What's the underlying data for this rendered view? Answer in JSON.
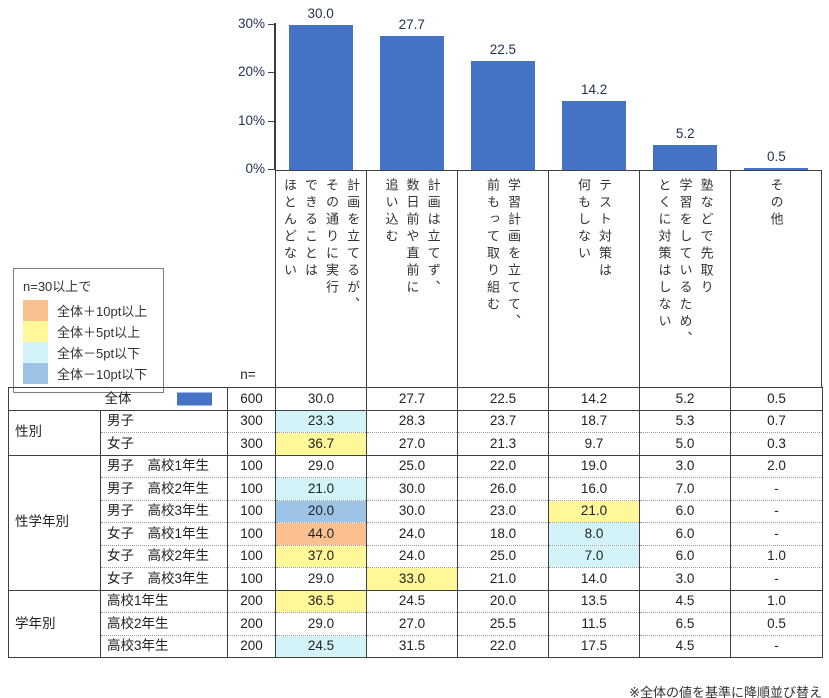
{
  "chart_data": {
    "type": "bar",
    "title": "",
    "xlabel": "",
    "ylabel": "",
    "ylim": [
      0,
      30
    ],
    "yticks": [
      30,
      20,
      10,
      0
    ],
    "ytick_suffix": "%",
    "grid": false,
    "legend_position": "none",
    "bar_color": "#4472C4",
    "categories": [
      "計画を立てるが、\nその通りに実行\nできることは\nほとんどない",
      "計画は立てず、\n数日前や直前に\n追い込む",
      "学習計画を立てて、\n前もって取り組む",
      "テスト対策は\n何もしない",
      "塾などで先取り\n学習をしているため、\nとくに対策はしない",
      "その他"
    ],
    "values": [
      30.0,
      27.7,
      22.5,
      14.2,
      5.2,
      0.5
    ],
    "value_labels": [
      "30.0",
      "27.7",
      "22.5",
      "14.2",
      "5.2",
      "0.5"
    ]
  },
  "legend": {
    "title": "n=30以上で",
    "items": [
      {
        "key": "plus10",
        "label": "全体＋10pt以上",
        "color": "#FAC090"
      },
      {
        "key": "plus5",
        "label": "全体＋5pt以上",
        "color": "#FFF899"
      },
      {
        "key": "minus5",
        "label": "全体－5pt以下",
        "color": "#D2F4F9"
      },
      {
        "key": "minus10",
        "label": "全体－10pt以下",
        "color": "#9DC3E6"
      }
    ]
  },
  "table": {
    "n_header": "n=",
    "overall": {
      "label": "全体",
      "swatch_color": "#4472C4",
      "n": "600",
      "values": [
        "30.0",
        "27.7",
        "22.5",
        "14.2",
        "5.2",
        "0.5"
      ],
      "highlights": [
        null,
        null,
        null,
        null,
        null,
        null
      ]
    },
    "groups": [
      {
        "name": "性別",
        "rows": [
          {
            "label": "男子",
            "n": "300",
            "values": [
              "23.3",
              "28.3",
              "23.7",
              "18.7",
              "5.3",
              "0.7"
            ],
            "highlights": [
              "minus5",
              null,
              null,
              null,
              null,
              null
            ]
          },
          {
            "label": "女子",
            "n": "300",
            "values": [
              "36.7",
              "27.0",
              "21.3",
              "9.7",
              "5.0",
              "0.3"
            ],
            "highlights": [
              "plus5",
              null,
              null,
              null,
              null,
              null
            ]
          }
        ]
      },
      {
        "name": "性学年別",
        "rows": [
          {
            "label": "男子　高校1年生",
            "n": "100",
            "values": [
              "29.0",
              "25.0",
              "22.0",
              "19.0",
              "3.0",
              "2.0"
            ],
            "highlights": [
              null,
              null,
              null,
              null,
              null,
              null
            ]
          },
          {
            "label": "男子　高校2年生",
            "n": "100",
            "values": [
              "21.0",
              "30.0",
              "26.0",
              "16.0",
              "7.0",
              "-"
            ],
            "highlights": [
              "minus5",
              null,
              null,
              null,
              null,
              null
            ]
          },
          {
            "label": "男子　高校3年生",
            "n": "100",
            "values": [
              "20.0",
              "30.0",
              "23.0",
              "21.0",
              "6.0",
              "-"
            ],
            "highlights": [
              "minus10",
              null,
              null,
              "plus5",
              null,
              null
            ]
          },
          {
            "label": "女子　高校1年生",
            "n": "100",
            "values": [
              "44.0",
              "24.0",
              "18.0",
              "8.0",
              "6.0",
              "-"
            ],
            "highlights": [
              "plus10",
              null,
              null,
              "minus5",
              null,
              null
            ]
          },
          {
            "label": "女子　高校2年生",
            "n": "100",
            "values": [
              "37.0",
              "24.0",
              "25.0",
              "7.0",
              "6.0",
              "1.0"
            ],
            "highlights": [
              "plus5",
              null,
              null,
              "minus5",
              null,
              null
            ]
          },
          {
            "label": "女子　高校3年生",
            "n": "100",
            "values": [
              "29.0",
              "33.0",
              "21.0",
              "14.0",
              "3.0",
              "-"
            ],
            "highlights": [
              null,
              "plus5",
              null,
              null,
              null,
              null
            ]
          }
        ]
      },
      {
        "name": "学年別",
        "rows": [
          {
            "label": "高校1年生",
            "n": "200",
            "values": [
              "36.5",
              "24.5",
              "20.0",
              "13.5",
              "4.5",
              "1.0"
            ],
            "highlights": [
              "plus5",
              null,
              null,
              null,
              null,
              null
            ]
          },
          {
            "label": "高校2年生",
            "n": "200",
            "values": [
              "29.0",
              "27.0",
              "25.5",
              "11.5",
              "6.5",
              "0.5"
            ],
            "highlights": [
              null,
              null,
              null,
              null,
              null,
              null
            ]
          },
          {
            "label": "高校3年生",
            "n": "200",
            "values": [
              "24.5",
              "31.5",
              "22.0",
              "17.5",
              "4.5",
              "-"
            ],
            "highlights": [
              "minus5",
              null,
              null,
              null,
              null,
              null
            ]
          }
        ]
      }
    ]
  },
  "footer": {
    "note": "※全体の値を基準に降順並び替え"
  }
}
